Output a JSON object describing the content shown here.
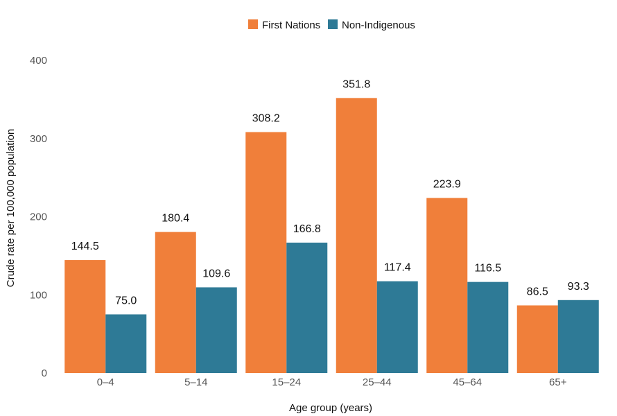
{
  "chart_data": {
    "type": "bar",
    "categories": [
      "0–4",
      "5–14",
      "15–24",
      "25–44",
      "45–64",
      "65+"
    ],
    "series": [
      {
        "name": "First Nations",
        "color": "#f07f3a",
        "values": [
          144.5,
          180.4,
          308.2,
          351.8,
          223.9,
          86.5
        ],
        "labels": [
          "144.5",
          "180.4",
          "308.2",
          "351.8",
          "223.9",
          "86.5"
        ]
      },
      {
        "name": "Non-Indigenous",
        "color": "#2e7a96",
        "values": [
          75.0,
          109.6,
          166.8,
          117.4,
          116.5,
          93.3
        ],
        "labels": [
          "75.0",
          "109.6",
          "166.8",
          "117.4",
          "116.5",
          "93.3"
        ]
      }
    ],
    "xlabel": "Age group (years)",
    "ylabel": "Crude rate per 100,000 population",
    "ylim": [
      0,
      400
    ],
    "yticks": [
      "0",
      "100",
      "200",
      "300",
      "400"
    ],
    "grid": false,
    "legend_position": "top-center"
  }
}
